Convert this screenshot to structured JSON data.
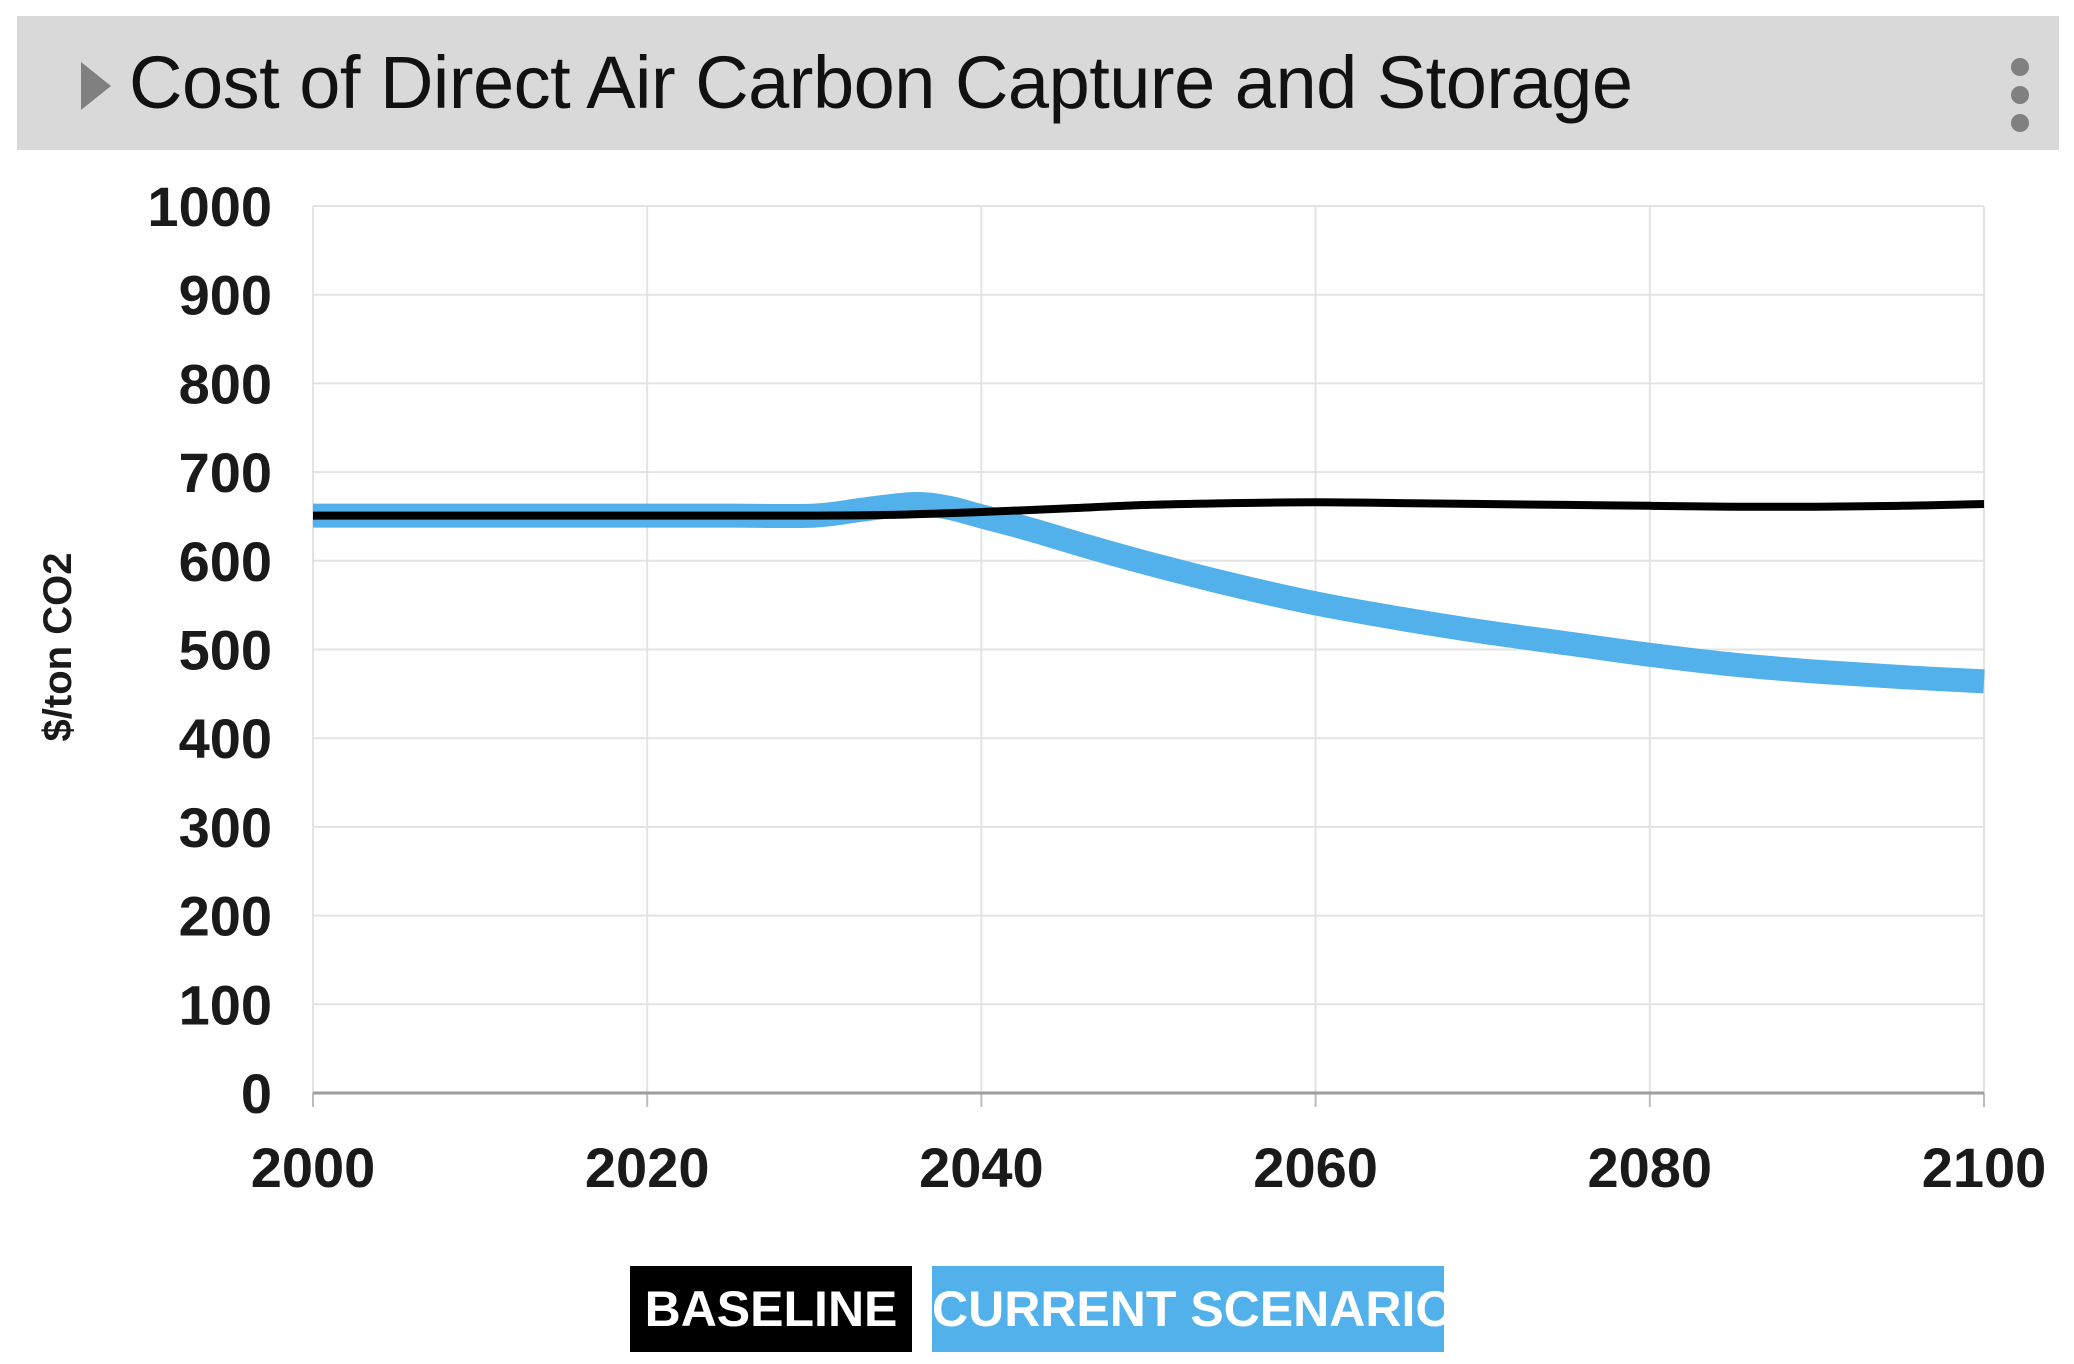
{
  "header": {
    "title": "Cost of Direct Air Carbon Capture and Storage",
    "expand_icon": "triangle-right-icon",
    "menu_icon": "vertical-dots-icon"
  },
  "chart_data": {
    "type": "line",
    "title": "Cost of Direct Air Carbon Capture and Storage",
    "xlabel": "",
    "ylabel": "$/ton CO2",
    "xlim": [
      2000,
      2100
    ],
    "ylim": [
      0,
      1000
    ],
    "xticks": [
      "2000",
      "2020",
      "2040",
      "2060",
      "2080",
      "2100"
    ],
    "yticks": [
      "0",
      "100",
      "200",
      "300",
      "400",
      "500",
      "600",
      "700",
      "800",
      "900",
      "1000"
    ],
    "grid": true,
    "legend_position": "bottom",
    "series": [
      {
        "name": "BASELINE",
        "color": "#000000",
        "x": [
          2000,
          2010,
          2020,
          2030,
          2035,
          2040,
          2045,
          2050,
          2055,
          2060,
          2065,
          2070,
          2075,
          2080,
          2085,
          2090,
          2095,
          2100
        ],
        "y": [
          651,
          651,
          651,
          651,
          652,
          655,
          659,
          663,
          665,
          666,
          665,
          664,
          663,
          662,
          661,
          661,
          662,
          664
        ]
      },
      {
        "name": "CURRENT SCENARIO",
        "color": "#52b1ea",
        "x": [
          2000,
          2010,
          2020,
          2025,
          2030,
          2033,
          2036,
          2038,
          2040,
          2043,
          2046,
          2050,
          2055,
          2060,
          2065,
          2070,
          2075,
          2080,
          2085,
          2090,
          2095,
          2100
        ],
        "y": [
          651,
          651,
          651,
          651,
          651,
          658,
          664,
          660,
          650,
          635,
          618,
          597,
          573,
          552,
          535,
          520,
          507,
          494,
          483,
          475,
          469,
          464
        ]
      }
    ]
  },
  "legend": {
    "baseline": "BASELINE",
    "current": "CURRENT SCENARIO"
  }
}
